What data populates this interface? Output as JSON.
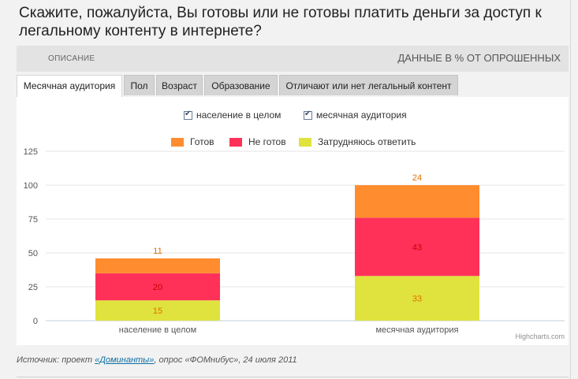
{
  "title": "Скажите, пожалуйста, Вы готовы или не готовы платить деньги за доступ к легальному контенту в интернете?",
  "description_label": "ОПИСАНИЕ",
  "data_label": "ДАННЫЕ В % ОТ ОПРОШЕННЫХ",
  "tabs": [
    {
      "label": "Месячная аудитория",
      "active": true
    },
    {
      "label": "Пол",
      "active": false
    },
    {
      "label": "Возраст",
      "active": false
    },
    {
      "label": "Образование",
      "active": false
    },
    {
      "label": "Отличают или нет легальный контент",
      "active": false
    }
  ],
  "filters": [
    {
      "label": "население в целом",
      "checked": true
    },
    {
      "label": "месячная аудитория",
      "checked": true
    }
  ],
  "credits": "Highcharts.com",
  "source": {
    "prefix": "Источник: проект ",
    "link": "«Доминанты»",
    "suffix": ", опрос «ФОМнибус», 24 июля 2011"
  },
  "colors": {
    "ready": "#ff8c2e",
    "not_ready": "#ff3159",
    "hard_to_say": "#e0e23e"
  },
  "chart_data": {
    "type": "bar",
    "stacked": true,
    "categories": [
      "население в целом",
      "месячная аудитория"
    ],
    "series": [
      {
        "name": "Затрудняюсь ответить",
        "values": [
          15,
          33
        ]
      },
      {
        "name": "Не готов",
        "values": [
          20,
          43
        ]
      },
      {
        "name": "Готов",
        "values": [
          11,
          24
        ]
      }
    ],
    "legend_order": [
      "Готов",
      "Не готов",
      "Затрудняюсь ответить"
    ],
    "ylim": [
      0,
      125
    ],
    "yticks": [
      0,
      25,
      50,
      75,
      100,
      125
    ],
    "grid": true,
    "legend_position": "top-center",
    "data_labels": true
  }
}
